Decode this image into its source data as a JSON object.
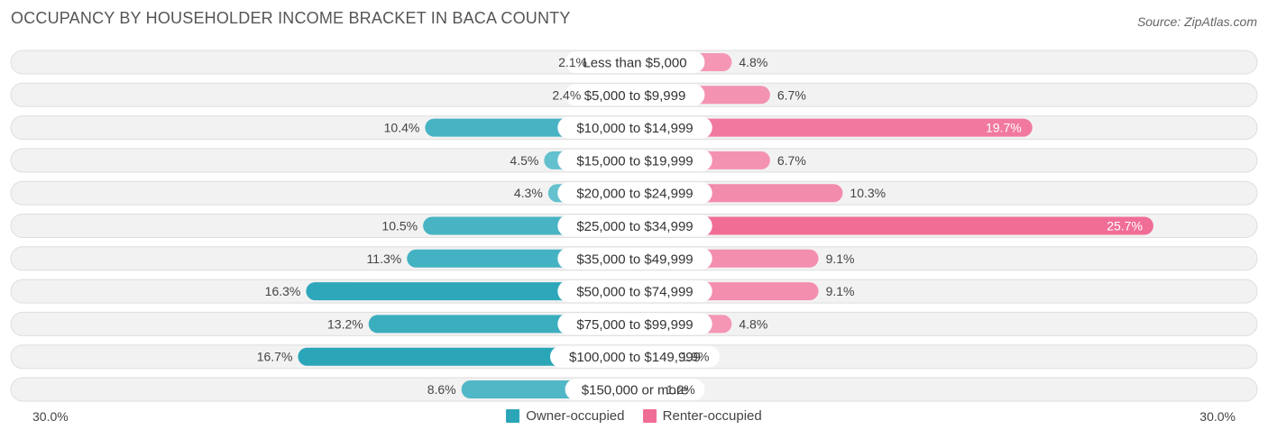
{
  "header": {
    "title": "OCCUPANCY BY HOUSEHOLDER INCOME BRACKET IN BACA COUNTY",
    "source": "Source: ZipAtlas.com"
  },
  "colors": {
    "owner": "#2ba6b8",
    "owner_light": "#78cad6",
    "renter": "#f06e96",
    "renter_light": "#f59fbb",
    "row_bg": "#f2f2f2",
    "row_border": "#dedede"
  },
  "axis": {
    "left_label": "30.0%",
    "right_label": "30.0%"
  },
  "legend": {
    "owner_label": "Owner-occupied",
    "renter_label": "Renter-occupied"
  },
  "chart_data": {
    "type": "bar",
    "orientation": "horizontal-diverging",
    "title": "OCCUPANCY BY HOUSEHOLDER INCOME BRACKET IN BACA COUNTY",
    "categories": [
      "Less than $5,000",
      "$5,000 to $9,999",
      "$10,000 to $14,999",
      "$15,000 to $19,999",
      "$20,000 to $24,999",
      "$25,000 to $34,999",
      "$35,000 to $49,999",
      "$50,000 to $74,999",
      "$75,000 to $99,999",
      "$100,000 to $149,999",
      "$150,000 or more"
    ],
    "series": [
      {
        "name": "Owner-occupied",
        "side": "left",
        "values": [
          2.1,
          2.4,
          10.4,
          4.5,
          4.3,
          10.5,
          11.3,
          16.3,
          13.2,
          16.7,
          8.6
        ],
        "labels": [
          "2.1%",
          "2.4%",
          "10.4%",
          "4.5%",
          "4.3%",
          "10.5%",
          "11.3%",
          "16.3%",
          "13.2%",
          "16.7%",
          "8.6%"
        ]
      },
      {
        "name": "Renter-occupied",
        "side": "right",
        "values": [
          4.8,
          6.7,
          19.7,
          6.7,
          10.3,
          25.7,
          9.1,
          9.1,
          4.8,
          1.9,
          1.2
        ],
        "labels": [
          "4.8%",
          "6.7%",
          "19.7%",
          "6.7%",
          "10.3%",
          "25.7%",
          "9.1%",
          "9.1%",
          "4.8%",
          "1.9%",
          "1.2%"
        ]
      }
    ],
    "xlim": [
      -30,
      30
    ],
    "unit": "%",
    "legend_position": "bottom-center"
  }
}
